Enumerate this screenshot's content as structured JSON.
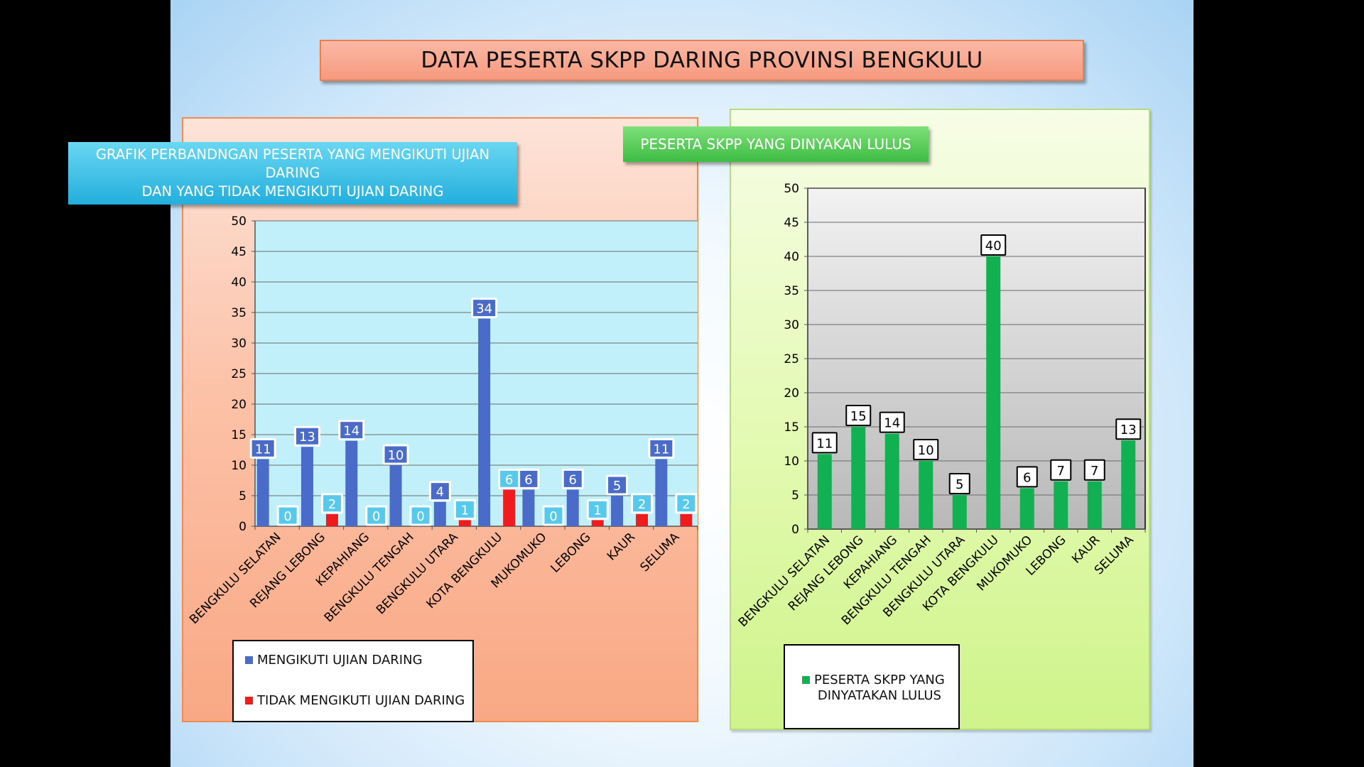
{
  "title": "DATA PESERTA SKPP DARING PROVINSI BENGKULU",
  "chart_data": [
    {
      "type": "bar",
      "title_lines": [
        "GRAFIK PERBANDNGAN PESERTA YANG MENGIKUTI UJIAN DARING",
        "DAN YANG TIDAK MENGIKUTI UJIAN DARING"
      ],
      "categories": [
        "BENGKULU SELATAN",
        "REJANG LEBONG",
        "KEPAHIANG",
        "BENGKULU TENGAH",
        "BENGKULU UTARA",
        "KOTA BENGKULU",
        "MUKOMUKO",
        "LEBONG",
        "KAUR",
        "SELUMA"
      ],
      "series": [
        {
          "name": "MENGIKUTI UJIAN DARING",
          "color": "#4a6cc8",
          "values": [
            11,
            13,
            14,
            10,
            4,
            34,
            6,
            6,
            5,
            11
          ]
        },
        {
          "name": "TIDAK MENGIKUTI UJIAN DARING",
          "color": "#ee1c1c",
          "values": [
            0,
            2,
            0,
            0,
            1,
            6,
            0,
            1,
            2,
            2
          ]
        }
      ],
      "ylim": [
        0,
        50
      ],
      "yticks": [
        0,
        5,
        10,
        15,
        20,
        25,
        30,
        35,
        40,
        45,
        50
      ],
      "plot_bg": "#c1f0fb",
      "grid": true,
      "legend_position": "bottom-right"
    },
    {
      "type": "bar",
      "title": "PESERTA SKPP YANG DINYAKAN LULUS",
      "categories": [
        "BENGKULU SELATAN",
        "REJANG LEBONG",
        "KEPAHIANG",
        "BENGKULU TENGAH",
        "BENGKULU UTARA",
        "KOTA BENGKULU",
        "MUKOMUKO",
        "LEBONG",
        "KAUR",
        "SELUMA"
      ],
      "series": [
        {
          "name": "PESERTA SKPP YANG DINYATAKAN LULUS",
          "color": "#11b051",
          "values": [
            11,
            15,
            14,
            10,
            5,
            40,
            6,
            7,
            7,
            13
          ]
        }
      ],
      "ylim": [
        0,
        50
      ],
      "yticks": [
        0,
        5,
        10,
        15,
        20,
        25,
        30,
        35,
        40,
        45,
        50
      ],
      "plot_bg": "gradient-grey",
      "grid": true,
      "legend_position": "bottom-right"
    }
  ],
  "legend_right_lines": [
    "PESERTA SKPP YANG",
    "DINYATAKAN LULUS"
  ]
}
